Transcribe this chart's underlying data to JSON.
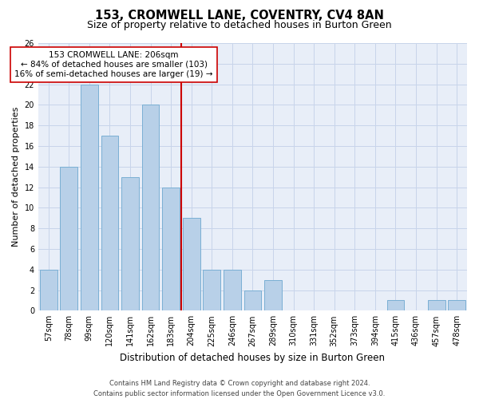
{
  "title": "153, CROMWELL LANE, COVENTRY, CV4 8AN",
  "subtitle": "Size of property relative to detached houses in Burton Green",
  "xlabel": "Distribution of detached houses by size in Burton Green",
  "ylabel": "Number of detached properties",
  "categories": [
    "57sqm",
    "78sqm",
    "99sqm",
    "120sqm",
    "141sqm",
    "162sqm",
    "183sqm",
    "204sqm",
    "225sqm",
    "246sqm",
    "267sqm",
    "289sqm",
    "310sqm",
    "331sqm",
    "352sqm",
    "373sqm",
    "394sqm",
    "415sqm",
    "436sqm",
    "457sqm",
    "478sqm"
  ],
  "values": [
    4,
    14,
    22,
    17,
    13,
    20,
    12,
    9,
    4,
    4,
    2,
    3,
    0,
    0,
    0,
    0,
    0,
    1,
    0,
    1,
    1
  ],
  "bar_color": "#B8D0E8",
  "bar_edgecolor": "#7AAFD4",
  "vline_color": "#CC0000",
  "annotation_text": "153 CROMWELL LANE: 206sqm\n← 84% of detached houses are smaller (103)\n16% of semi-detached houses are larger (19) →",
  "annotation_box_color": "#CC0000",
  "ylim": [
    0,
    26
  ],
  "yticks": [
    0,
    2,
    4,
    6,
    8,
    10,
    12,
    14,
    16,
    18,
    20,
    22,
    24,
    26
  ],
  "grid_color": "#C8D4EA",
  "bg_color": "#E8EEF8",
  "footnote": "Contains HM Land Registry data © Crown copyright and database right 2024.\nContains public sector information licensed under the Open Government Licence v3.0.",
  "title_fontsize": 10.5,
  "subtitle_fontsize": 9,
  "xlabel_fontsize": 8.5,
  "ylabel_fontsize": 8,
  "tick_fontsize": 7,
  "annotation_fontsize": 7.5,
  "footnote_fontsize": 6
}
